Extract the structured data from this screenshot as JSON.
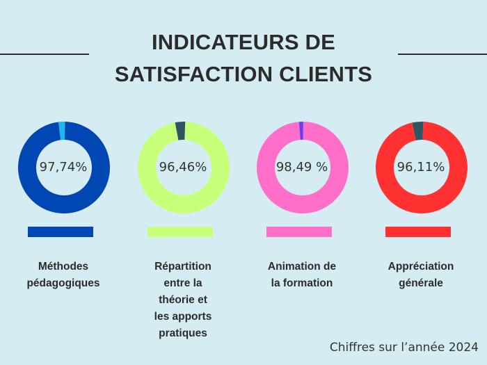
{
  "title_line1": "INDICATEURS DE",
  "title_line2": "SATISFACTION CLIENTS",
  "footer": "Chiffres sur l’année 2024",
  "chart_data": {
    "type": "pie",
    "items": [
      {
        "value": 97.74,
        "value_label": "97,74%",
        "label": "Méthodes pédagogiques",
        "label_lines": [
          "Méthodes",
          "pédagogiques"
        ],
        "color": "#0047b3",
        "remainder_color": "#1fb6e8"
      },
      {
        "value": 96.46,
        "value_label": "96,46%",
        "label": "Répartition entre la théorie et les apports pratiques",
        "label_lines": [
          "Répartition",
          "entre la",
          "théorie et",
          "les apports",
          "pratiques"
        ],
        "color": "#c8ff7a",
        "remainder_color": "#2f5563"
      },
      {
        "value": 98.49,
        "value_label": "98,49 %",
        "label": "Animation de la formation",
        "label_lines": [
          "Animation de",
          "la formation"
        ],
        "color": "#ff6ec8",
        "remainder_color": "#6b3ff0"
      },
      {
        "value": 96.11,
        "value_label": "96,11%",
        "label": "Appréciation générale",
        "label_lines": [
          "Appréciation",
          "générale"
        ],
        "color": "#ff3131",
        "remainder_color": "#2f5563"
      }
    ]
  }
}
